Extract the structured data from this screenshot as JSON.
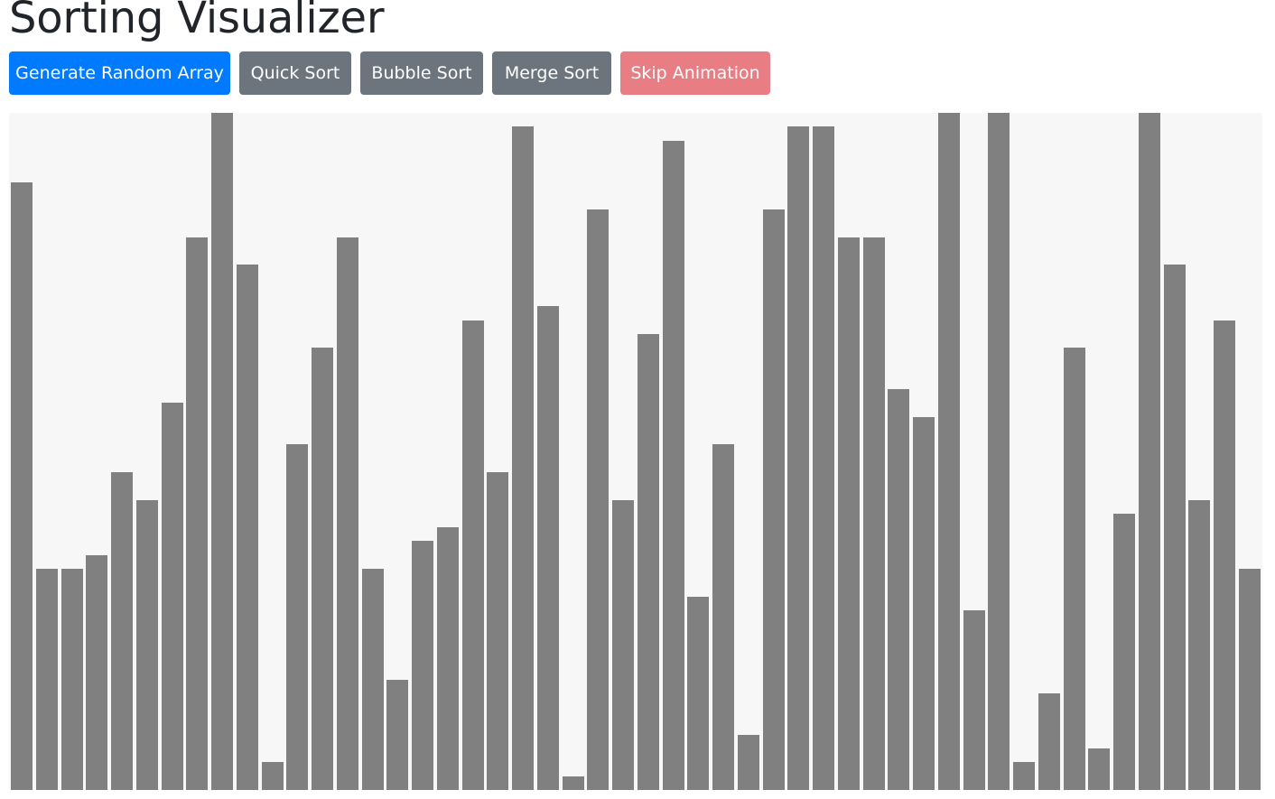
{
  "app": {
    "title": "Sorting Visualizer"
  },
  "toolbar": {
    "buttons": [
      {
        "label": "Generate Random Array",
        "style": "primary"
      },
      {
        "label": "Quick Sort",
        "style": "secondary"
      },
      {
        "label": "Bubble Sort",
        "style": "secondary"
      },
      {
        "label": "Merge Sort",
        "style": "secondary"
      },
      {
        "label": "Skip Animation",
        "style": "danger"
      }
    ]
  },
  "colors": {
    "primary": "#007bff",
    "secondary": "#6c757d",
    "danger": "#e97d84",
    "bar": "#808080",
    "canvas": "#f7f7f7"
  },
  "chart_data": {
    "type": "bar",
    "title": "",
    "xlabel": "",
    "ylabel": "",
    "ylim": [
      0,
      49
    ],
    "values": [
      44,
      16,
      16,
      17,
      23,
      21,
      28,
      40,
      49,
      38,
      2,
      25,
      32,
      40,
      16,
      8,
      18,
      19,
      34,
      23,
      48,
      35,
      1,
      42,
      21,
      33,
      47,
      14,
      25,
      4,
      42,
      48,
      48,
      40,
      40,
      29,
      27,
      49,
      13,
      49,
      2,
      7,
      32,
      3,
      20,
      49,
      38,
      21,
      34,
      16
    ]
  }
}
